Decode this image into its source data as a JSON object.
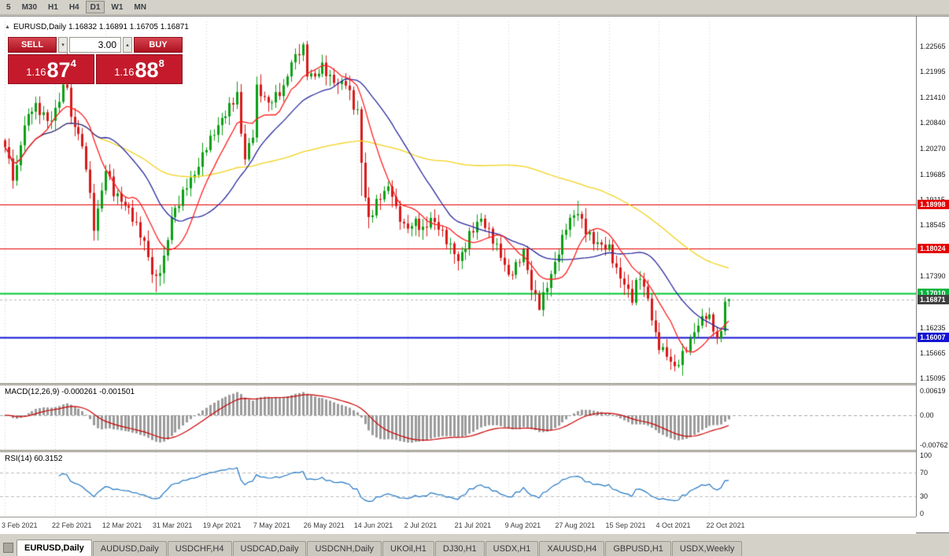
{
  "toolbar": {
    "timeframes": [
      "5",
      "M30",
      "H1",
      "H4",
      "D1",
      "W1",
      "MN"
    ],
    "active": "D1"
  },
  "chart_header": {
    "title": "EURUSD,Daily 1.16832 1.16891 1.16705 1.16871"
  },
  "icons": {
    "symbol_marker": "▲",
    "spin_up": "▴",
    "spin_down": "▾"
  },
  "trade_panel": {
    "sell_label": "SELL",
    "buy_label": "BUY",
    "volume": "3.00",
    "sell_price": {
      "small": "1.16",
      "big": "87",
      "sup": "4"
    },
    "buy_price": {
      "small": "1.16",
      "big": "88",
      "sup": "8"
    }
  },
  "price_axis": {
    "labels": [
      "1.22565",
      "1.21995",
      "1.21410",
      "1.20840",
      "1.20270",
      "1.19685",
      "1.19115",
      "1.18545",
      "1.17975",
      "1.17390",
      "1.16820",
      "1.16235",
      "1.15665",
      "1.15095"
    ],
    "tags": [
      {
        "text": "1.18998",
        "price": 1.18998,
        "bg": "#e60000"
      },
      {
        "text": "1.18024",
        "price": 1.18024,
        "bg": "#e60000"
      },
      {
        "text": "1.17010",
        "price": 1.1701,
        "bg": "#00b43c"
      },
      {
        "text": "1.16871",
        "price": 1.16871,
        "bg": "#3f3f3f"
      },
      {
        "text": "1.16007",
        "price": 1.16007,
        "bg": "#1414d2"
      }
    ]
  },
  "dates": [
    "3 Feb 2021",
    "22 Feb 2021",
    "12 Mar 2021",
    "31 Mar 2021",
    "19 Apr 2021",
    "7 May 2021",
    "26 May 2021",
    "14 Jun 2021",
    "2 Jul 2021",
    "21 Jul 2021",
    "9 Aug 2021",
    "27 Aug 2021",
    "15 Sep 2021",
    "4 Oct 2021",
    "22 Oct 2021"
  ],
  "macd": {
    "title": "MACD(12,26,9) -0.000261 -0.001501",
    "axis_labels": [
      "0.00619",
      "0.00",
      "-0.00762"
    ],
    "line_value": -0.000261,
    "signal_value": -0.001501
  },
  "rsi": {
    "title": "RSI(14) 60.3152",
    "axis_labels": [
      "100",
      "70",
      "30",
      "0"
    ],
    "value": 60.3152,
    "levels": [
      70,
      30
    ]
  },
  "tabs": {
    "active": "EURUSD,Daily",
    "items": [
      "EURUSD,Daily",
      "AUDUSD,Daily",
      "USDCHF,H4",
      "USDCAD,Daily",
      "USDCNH,Daily",
      "UKOil,H1",
      "DJ30,H1",
      "USDX,H1",
      "XAUUSD,H4",
      "GBPUSD,H1",
      "USDX,Weekly"
    ]
  },
  "chart_data": {
    "type": "candlestick",
    "symbol": "EURUSD",
    "timeframe": "Daily",
    "ohlc_current": {
      "open": 1.16832,
      "high": 1.16891,
      "low": 1.16705,
      "close": 1.16871
    },
    "bar_count": 188,
    "price_range": [
      1.1499,
      1.2313
    ],
    "up_color": "#0aa014",
    "down_color": "#d81a1a",
    "close_anchors": [
      [
        0,
        1.203
      ],
      [
        1,
        1.2
      ],
      [
        2,
        1.1962
      ],
      [
        3,
        1.198
      ],
      [
        4,
        1.2042
      ],
      [
        6,
        1.2105
      ],
      [
        8,
        1.2122
      ],
      [
        10,
        1.21
      ],
      [
        12,
        1.2088
      ],
      [
        13,
        1.2115
      ],
      [
        15,
        1.2162
      ],
      [
        16,
        1.2172
      ],
      [
        17,
        1.2092
      ],
      [
        19,
        1.2062
      ],
      [
        21,
        1.1988
      ],
      [
        23,
        1.1848
      ],
      [
        25,
        1.193
      ],
      [
        26,
        1.1982
      ],
      [
        28,
        1.1928
      ],
      [
        30,
        1.191
      ],
      [
        32,
        1.1888
      ],
      [
        34,
        1.1852
      ],
      [
        36,
        1.1815
      ],
      [
        38,
        1.1748
      ],
      [
        39,
        1.1732
      ],
      [
        41,
        1.1778
      ],
      [
        43,
        1.1872
      ],
      [
        45,
        1.1905
      ],
      [
        47,
        1.1945
      ],
      [
        49,
        1.1968
      ],
      [
        52,
        1.2032
      ],
      [
        55,
        1.2078
      ],
      [
        58,
        1.212
      ],
      [
        60,
        1.2148
      ],
      [
        61,
        1.2062
      ],
      [
        62,
        1.2005
      ],
      [
        64,
        1.206
      ],
      [
        65,
        1.2162
      ],
      [
        67,
        1.214
      ],
      [
        68,
        1.2128
      ],
      [
        70,
        1.2145
      ],
      [
        72,
        1.2162
      ],
      [
        74,
        1.2222
      ],
      [
        76,
        1.2245
      ],
      [
        77,
        1.2252
      ],
      [
        78,
        1.2196
      ],
      [
        80,
        1.2188
      ],
      [
        82,
        1.2212
      ],
      [
        84,
        1.2185
      ],
      [
        86,
        1.2172
      ],
      [
        88,
        1.2176
      ],
      [
        90,
        1.2122
      ],
      [
        91,
        1.211
      ],
      [
        92,
        1.1995
      ],
      [
        93,
        1.192
      ],
      [
        94,
        1.1865
      ],
      [
        96,
        1.1905
      ],
      [
        98,
        1.193
      ],
      [
        99,
        1.1938
      ],
      [
        100,
        1.1925
      ],
      [
        101,
        1.1888
      ],
      [
        103,
        1.1852
      ],
      [
        104,
        1.1848
      ],
      [
        106,
        1.1862
      ],
      [
        108,
        1.1842
      ],
      [
        110,
        1.1868
      ],
      [
        112,
        1.185
      ],
      [
        114,
        1.182
      ],
      [
        116,
        1.1792
      ],
      [
        117,
        1.1775
      ],
      [
        118,
        1.1788
      ],
      [
        120,
        1.1832
      ],
      [
        122,
        1.1858
      ],
      [
        123,
        1.1868
      ],
      [
        125,
        1.1838
      ],
      [
        127,
        1.1805
      ],
      [
        129,
        1.1765
      ],
      [
        130,
        1.1738
      ],
      [
        132,
        1.1762
      ],
      [
        134,
        1.1795
      ],
      [
        136,
        1.1712
      ],
      [
        138,
        1.1672
      ],
      [
        140,
        1.1718
      ],
      [
        142,
        1.1768
      ],
      [
        143,
        1.1795
      ],
      [
        145,
        1.1852
      ],
      [
        147,
        1.1878
      ],
      [
        148,
        1.1882
      ],
      [
        150,
        1.1842
      ],
      [
        152,
        1.1818
      ],
      [
        154,
        1.1808
      ],
      [
        156,
        1.1802
      ],
      [
        158,
        1.1752
      ],
      [
        160,
        1.1722
      ],
      [
        162,
        1.1688
      ],
      [
        163,
        1.1722
      ],
      [
        164,
        1.174
      ],
      [
        165,
        1.1712
      ],
      [
        166,
        1.1688
      ],
      [
        167,
        1.1645
      ],
      [
        168,
        1.1605
      ],
      [
        169,
        1.1582
      ],
      [
        171,
        1.1562
      ],
      [
        173,
        1.1532
      ],
      [
        175,
        1.1562
      ],
      [
        177,
        1.1595
      ],
      [
        179,
        1.1632
      ],
      [
        181,
        1.1652
      ],
      [
        182,
        1.1645
      ],
      [
        183,
        1.162
      ],
      [
        184,
        1.1598
      ],
      [
        185,
        1.1612
      ],
      [
        186,
        1.1682
      ],
      [
        187,
        1.16871
      ]
    ],
    "extremes": [
      [
        16,
        "high",
        1.2243
      ],
      [
        39,
        "low",
        1.1704
      ],
      [
        77,
        "high",
        1.2266
      ],
      [
        92,
        "low",
        1.192
      ],
      [
        94,
        "low",
        1.1847
      ],
      [
        117,
        "low",
        1.1752
      ],
      [
        138,
        "low",
        1.1664
      ],
      [
        148,
        "high",
        1.1909
      ],
      [
        173,
        "low",
        1.1525
      ],
      [
        186,
        "high",
        1.1692
      ]
    ],
    "hlines": [
      {
        "price": 1.18998,
        "color": "#e60000",
        "width": 1
      },
      {
        "price": 1.18024,
        "color": "#e60000",
        "width": 1
      },
      {
        "price": 1.1701,
        "color": "#00c832",
        "width": 2
      },
      {
        "price": 1.16007,
        "color": "#1414d2",
        "width": 2
      }
    ],
    "bid_price": 1.16871,
    "moving_averages": [
      {
        "period": 10,
        "color": "#ff2020"
      },
      {
        "period": 24,
        "color": "#2a2aa0"
      },
      {
        "period": 90,
        "color": "#f2d31b"
      }
    ],
    "indicators": [
      {
        "name": "MACD",
        "params": [
          12,
          26,
          9
        ]
      },
      {
        "name": "RSI",
        "params": [
          14
        ]
      }
    ]
  }
}
